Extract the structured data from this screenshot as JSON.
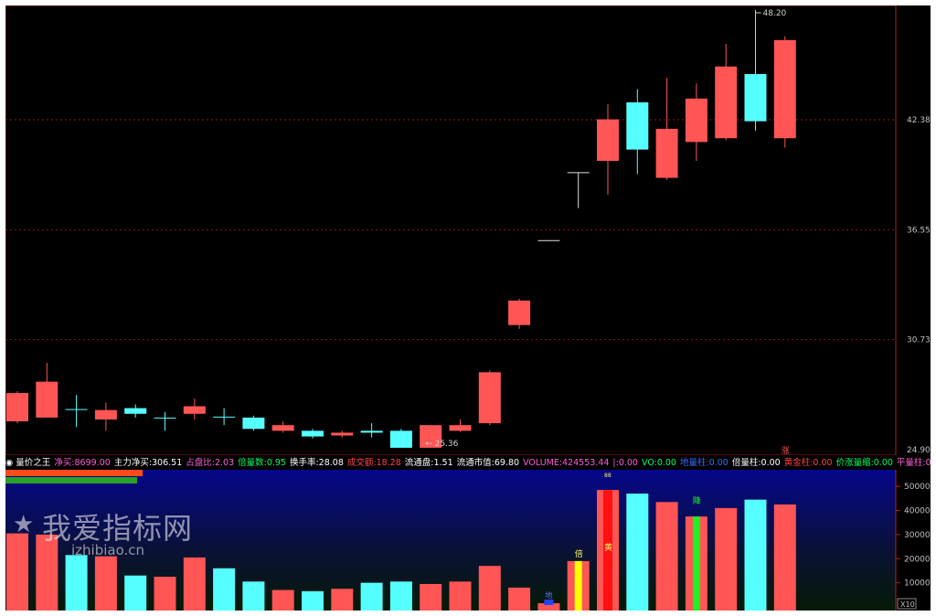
{
  "colors": {
    "up": "#ff5555",
    "down": "#55ffff",
    "grid": "#8b1a1a",
    "axisText": "#c0c0c0",
    "bg": "#000000"
  },
  "price_axis": {
    "ticks": [
      "48.20",
      "42.38",
      "36.55",
      "30.73",
      "24.90"
    ],
    "low_label": "25.36"
  },
  "info_bar": {
    "items": [
      {
        "label": "量价之王",
        "value": "",
        "color": "#ffffff"
      },
      {
        "label": "净买:",
        "value": "8699.00",
        "color": "#ff5fd7"
      },
      {
        "label": "主力净买:",
        "value": "306.51",
        "color": "#ffffff"
      },
      {
        "label": "占盘比:",
        "value": "2.03",
        "color": "#ff5fd7"
      },
      {
        "label": "倍量数:",
        "value": "0.95",
        "color": "#00ff66"
      },
      {
        "label": "换手率:",
        "value": "28.08",
        "color": "#ffffff"
      },
      {
        "label": "成交额:",
        "value": "18.28",
        "color": "#ff4444"
      },
      {
        "label": "流通盘:",
        "value": "1.51",
        "color": "#ffffff"
      },
      {
        "label": "流通市值:",
        "value": "69.80",
        "color": "#ffffff"
      },
      {
        "label": "VOLUME:",
        "value": "424553.44",
        "color": "#ff5fd7"
      },
      {
        "label": "|:",
        "value": "0.00",
        "color": "#ff5fd7"
      },
      {
        "label": "VO:",
        "value": "0.00",
        "color": "#00ff66"
      },
      {
        "label": "地量柱:",
        "value": "0.00",
        "color": "#3b6bff"
      },
      {
        "label": "倍量柱:",
        "value": "0.00",
        "color": "#ffffff"
      },
      {
        "label": "黄金柱:",
        "value": "0.00",
        "color": "#ff4444"
      },
      {
        "label": "价涨量缩:",
        "value": "0.00",
        "color": "#00ff66"
      },
      {
        "label": "平量柱:",
        "value": "0.00",
        "color": "#ff5fd7"
      }
    ]
  },
  "volume_axis": {
    "ticks": [
      "50000",
      "40000",
      "30000",
      "20000",
      "10000"
    ],
    "unit": "X10"
  },
  "markers": {
    "rise": "涨",
    "bei": "倍",
    "huang": "黄",
    "jiang": "降",
    "di": "地",
    "small_top": "88"
  },
  "watermark": {
    "cn": "我爱指标网",
    "url": "izhibiao.cn",
    "star": "★"
  },
  "chart_data": {
    "type": "candlestick",
    "price_range": [
      24.9,
      48.2
    ],
    "volume_range": [
      0,
      55000
    ],
    "candles": [
      {
        "o": 26.4,
        "h": 28.0,
        "l": 26.3,
        "c": 27.9
      },
      {
        "o": 26.6,
        "h": 29.5,
        "l": 26.6,
        "c": 28.5
      },
      {
        "o": 27.05,
        "h": 27.8,
        "l": 26.1,
        "c": 27.05
      },
      {
        "o": 26.5,
        "h": 27.4,
        "l": 25.9,
        "c": 27.0
      },
      {
        "o": 27.1,
        "h": 27.3,
        "l": 26.6,
        "c": 26.8
      },
      {
        "o": 26.6,
        "h": 26.9,
        "l": 25.9,
        "c": 26.6
      },
      {
        "o": 26.8,
        "h": 27.6,
        "l": 26.5,
        "c": 27.2
      },
      {
        "o": 26.65,
        "h": 27.1,
        "l": 26.2,
        "c": 26.65
      },
      {
        "o": 26.6,
        "h": 26.7,
        "l": 25.9,
        "c": 26.0
      },
      {
        "o": 25.9,
        "h": 26.4,
        "l": 25.8,
        "c": 26.2
      },
      {
        "o": 25.9,
        "h": 26.0,
        "l": 25.5,
        "c": 25.6
      },
      {
        "o": 25.65,
        "h": 25.9,
        "l": 25.55,
        "c": 25.8
      },
      {
        "o": 25.9,
        "h": 26.3,
        "l": 25.55,
        "c": 25.8
      },
      {
        "o": 25.9,
        "h": 26.0,
        "l": 25.2,
        "c": 25.0
      },
      {
        "o": 25.0,
        "h": 26.2,
        "l": 25.0,
        "c": 26.2
      },
      {
        "o": 25.9,
        "h": 26.5,
        "l": 25.85,
        "c": 26.2
      },
      {
        "o": 26.3,
        "h": 29.1,
        "l": 26.2,
        "c": 29.0
      },
      {
        "o": 31.5,
        "h": 32.9,
        "l": 31.3,
        "c": 32.8
      },
      {
        "o": 36.0,
        "h": 36.0,
        "l": 36.0,
        "c": 36.0
      },
      {
        "o": 39.6,
        "h": 39.6,
        "l": 37.7,
        "c": 39.6
      },
      {
        "o": 40.2,
        "h": 43.2,
        "l": 38.4,
        "c": 42.4
      },
      {
        "o": 43.3,
        "h": 44.0,
        "l": 39.5,
        "c": 40.8
      },
      {
        "o": 39.3,
        "h": 44.6,
        "l": 39.2,
        "c": 41.9
      },
      {
        "o": 41.2,
        "h": 44.3,
        "l": 40.2,
        "c": 43.5
      },
      {
        "o": 41.4,
        "h": 46.4,
        "l": 41.3,
        "c": 45.2
      },
      {
        "o": 44.8,
        "h": 48.2,
        "l": 41.8,
        "c": 42.3
      },
      {
        "o": 41.4,
        "h": 46.8,
        "l": 40.9,
        "c": 46.6
      }
    ],
    "volume": [
      30500,
      30000,
      21500,
      21000,
      13000,
      12500,
      20500,
      16000,
      10500,
      7000,
      6500,
      7500,
      10000,
      10500,
      9500,
      10500,
      17000,
      8000,
      1500,
      19000,
      48500,
      47000,
      43500,
      37500,
      41000,
      44500,
      42500
    ],
    "volume_colors": [
      "up",
      "up",
      "down",
      "up",
      "down",
      "up",
      "up",
      "down",
      "down",
      "up",
      "down",
      "up",
      "down",
      "down",
      "up",
      "up",
      "up",
      "up",
      "up",
      "up",
      "up",
      "down",
      "up",
      "up",
      "up",
      "down",
      "up"
    ]
  }
}
